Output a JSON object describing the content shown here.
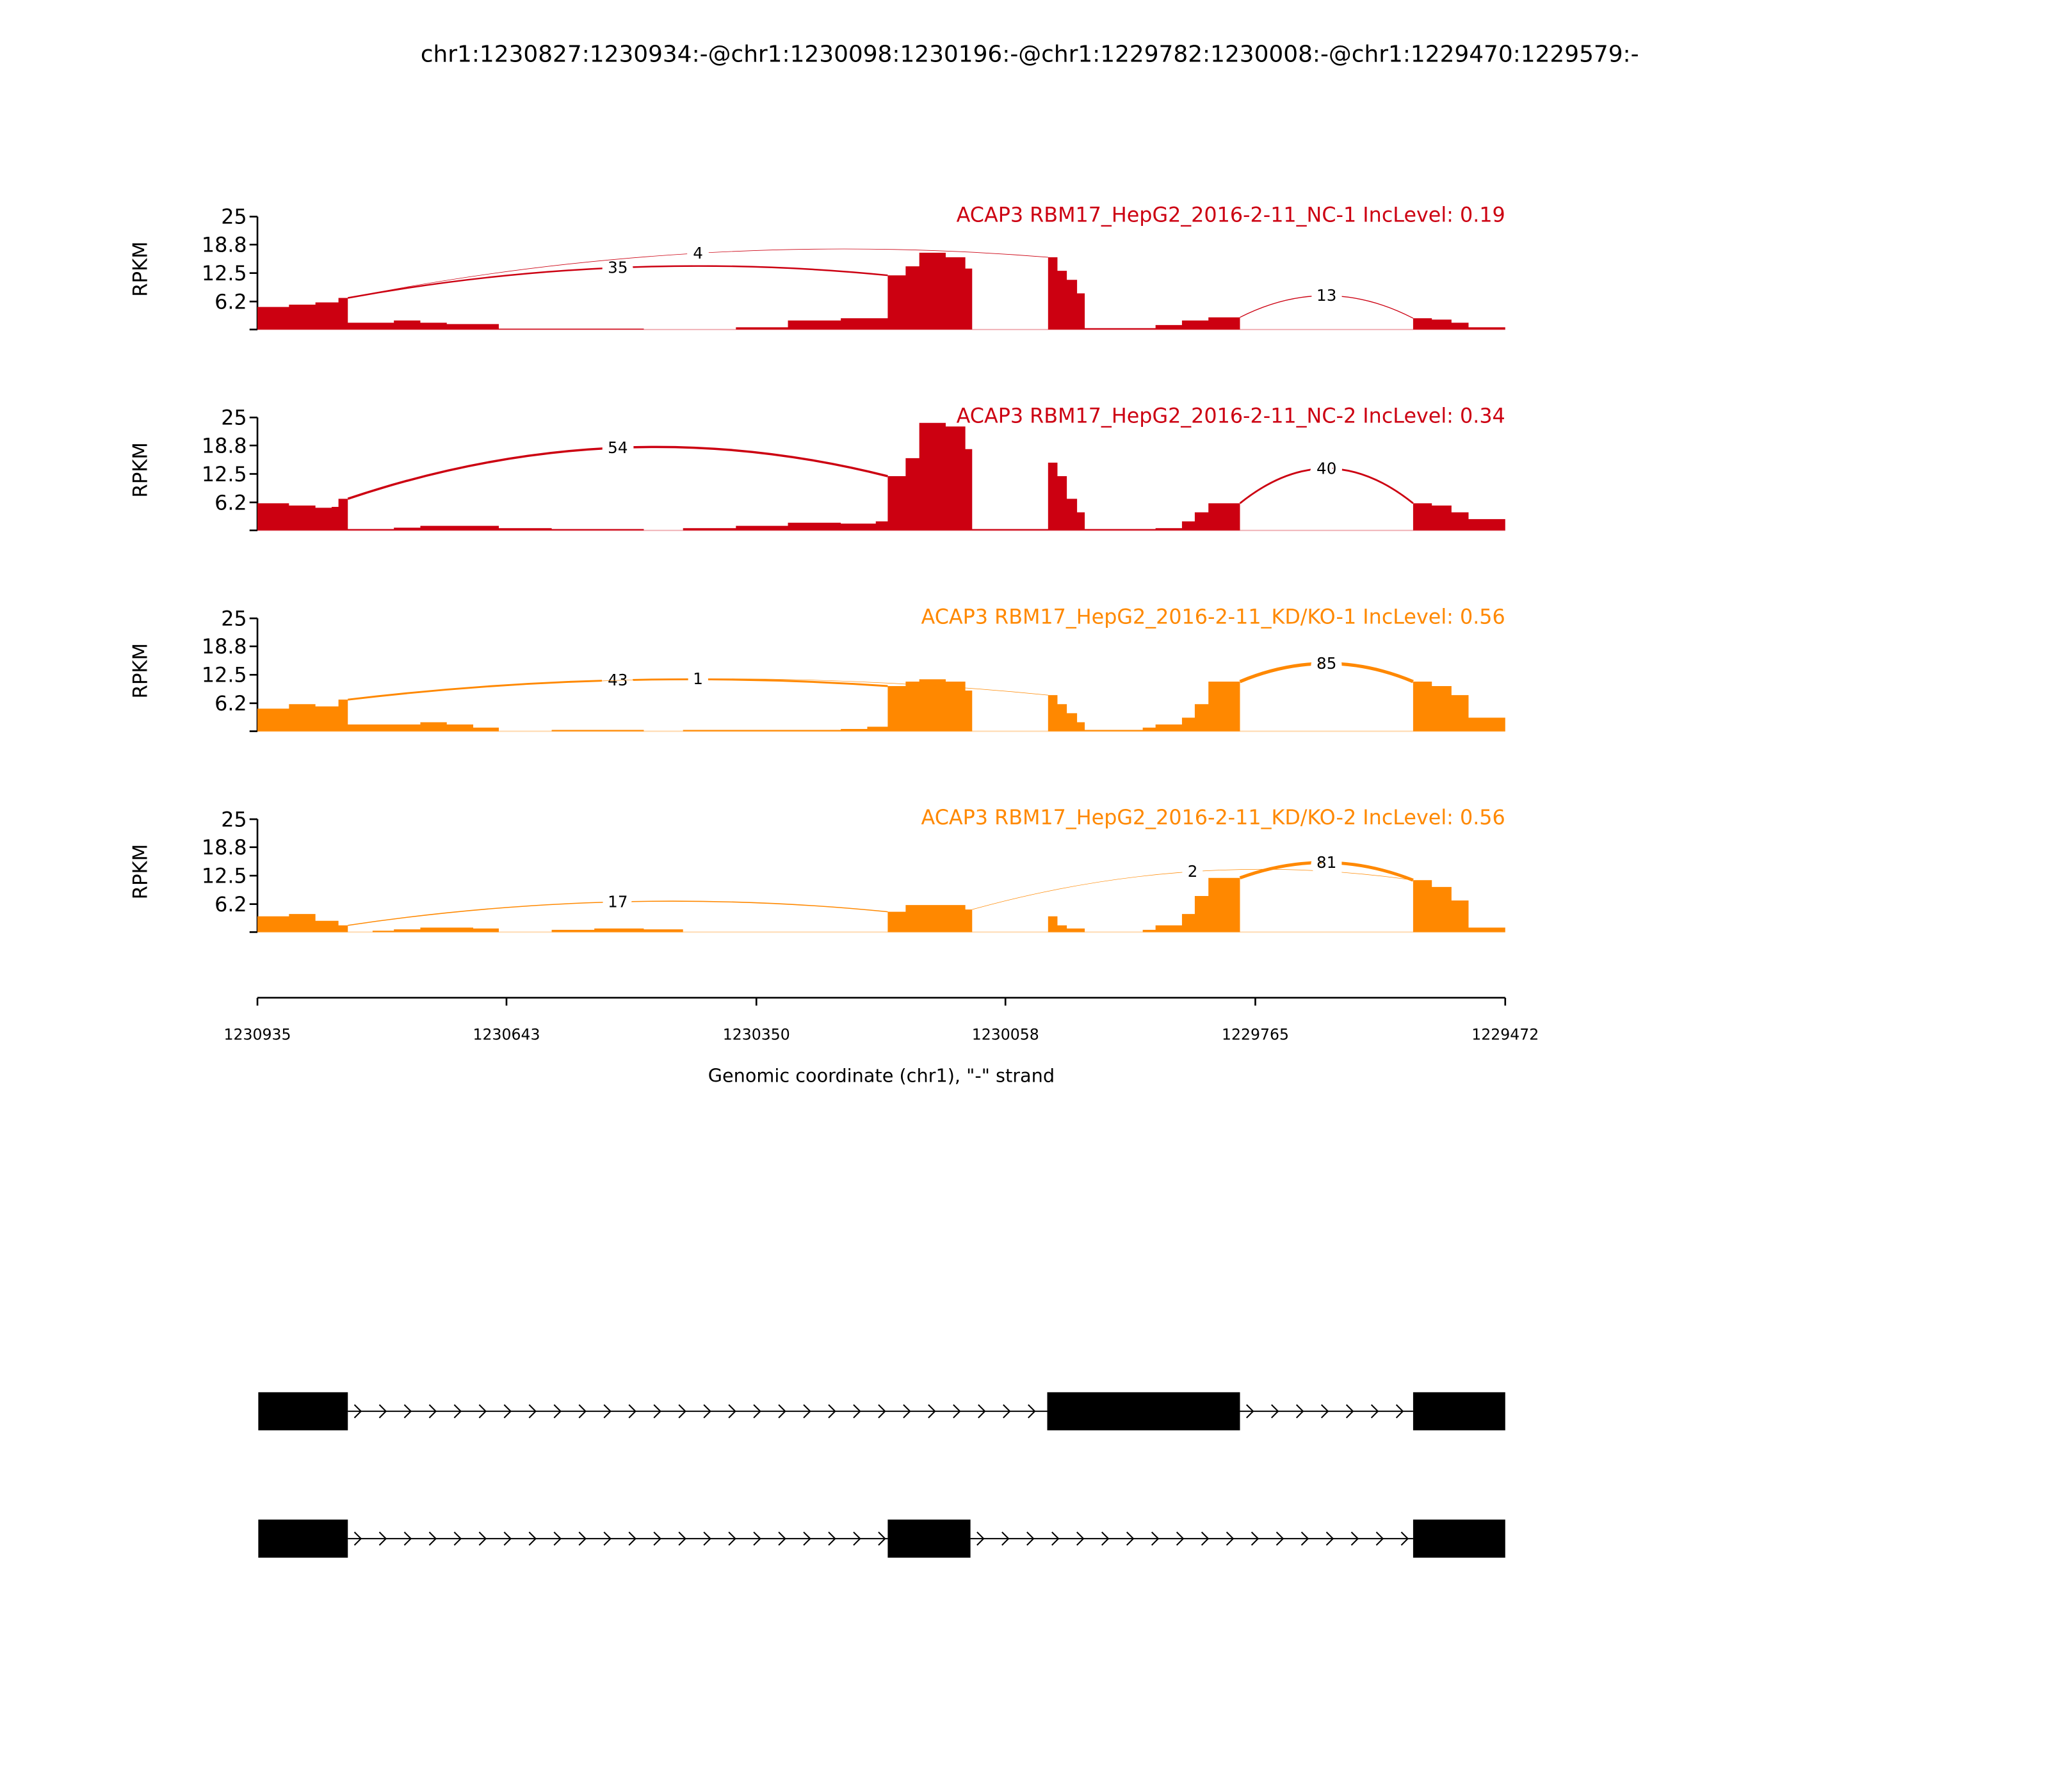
{
  "chart_data": {
    "type": "area",
    "title": "chr1:1230827:1230934:-@chr1:1230098:1230196:-@chr1:1229782:1230008:-@chr1:1229470:1229579:-",
    "xlabel": "Genomic coordinate (chr1), \"-\" strand",
    "ylabel": "RPKM",
    "xlim": [
      1230935,
      1229472
    ],
    "ylim": [
      0,
      25
    ],
    "yticks": [
      "25",
      "18.8",
      "12.5",
      "6.2"
    ],
    "ytick_values": [
      25,
      18.8,
      12.5,
      6.2,
      0
    ],
    "xticks": [
      "1230935",
      "1230643",
      "1230350",
      "1230058",
      "1229765",
      "1229472"
    ],
    "xtick_values": [
      1230935,
      1230643,
      1230350,
      1230058,
      1229765,
      1229472
    ],
    "colors": {
      "NC": "#CC0011",
      "KD": "#FF8800"
    },
    "samples": [
      {
        "title": "ACAP3 RBM17_HepG2_2016-2-11_NC-1 IncLevel: 0.19",
        "color": "#CC0011",
        "coverage": [
          [
            1230935,
            5
          ],
          [
            1230898,
            5.5
          ],
          [
            1230867,
            6
          ],
          [
            1230840,
            7
          ],
          [
            1230829,
            1.5
          ],
          [
            1230775,
            2
          ],
          [
            1230744,
            1.5
          ],
          [
            1230713,
            1.2
          ],
          [
            1230652,
            0.2
          ],
          [
            1230482,
            0
          ],
          [
            1230374,
            0.5
          ],
          [
            1230313,
            2
          ],
          [
            1230251,
            2.5
          ],
          [
            1230196,
            12
          ],
          [
            1230175,
            14
          ],
          [
            1230159,
            17
          ],
          [
            1230128,
            16
          ],
          [
            1230105,
            13.5
          ],
          [
            1230097,
            0
          ],
          [
            1230008,
            16
          ],
          [
            1229997,
            13
          ],
          [
            1229986,
            11
          ],
          [
            1229974,
            8
          ],
          [
            1229965,
            0.3
          ],
          [
            1229882,
            1
          ],
          [
            1229851,
            2
          ],
          [
            1229820,
            2.7
          ],
          [
            1229783,
            0
          ],
          [
            1229580,
            2.5
          ],
          [
            1229558,
            2.2
          ],
          [
            1229535,
            1.5
          ],
          [
            1229515,
            0.5
          ],
          [
            1229472,
            0.5
          ]
        ],
        "junctions": [
          {
            "from": 1230829,
            "to": 1230196,
            "count": "35",
            "apex": 13.7
          },
          {
            "from": 1230829,
            "to": 1230008,
            "count": "4",
            "apex": 16.9
          },
          {
            "from": 1229783,
            "to": 1229580,
            "count": "13",
            "apex": 7.5
          }
        ]
      },
      {
        "title": "ACAP3 RBM17_HepG2_2016-2-11_NC-2 IncLevel: 0.34",
        "color": "#CC0011",
        "coverage": [
          [
            1230935,
            6
          ],
          [
            1230898,
            5.5
          ],
          [
            1230867,
            5
          ],
          [
            1230848,
            5.2
          ],
          [
            1230840,
            7
          ],
          [
            1230829,
            0.3
          ],
          [
            1230775,
            0.6
          ],
          [
            1230744,
            1
          ],
          [
            1230652,
            0.5
          ],
          [
            1230590,
            0.3
          ],
          [
            1230482,
            0
          ],
          [
            1230436,
            0.5
          ],
          [
            1230374,
            1
          ],
          [
            1230313,
            1.7
          ],
          [
            1230251,
            1.5
          ],
          [
            1230210,
            2
          ],
          [
            1230196,
            12
          ],
          [
            1230175,
            16
          ],
          [
            1230159,
            23.8
          ],
          [
            1230128,
            23
          ],
          [
            1230105,
            18
          ],
          [
            1230097,
            0.3
          ],
          [
            1230008,
            15
          ],
          [
            1229997,
            12
          ],
          [
            1229986,
            7
          ],
          [
            1229974,
            4
          ],
          [
            1229965,
            0.3
          ],
          [
            1229882,
            0.5
          ],
          [
            1229851,
            2
          ],
          [
            1229836,
            4
          ],
          [
            1229820,
            6
          ],
          [
            1229783,
            0
          ],
          [
            1229580,
            6
          ],
          [
            1229558,
            5.5
          ],
          [
            1229535,
            4
          ],
          [
            1229515,
            2.5
          ],
          [
            1229472,
            2.5
          ]
        ],
        "junctions": [
          {
            "from": 1230829,
            "to": 1230196,
            "count": "54",
            "apex": 18.3
          },
          {
            "from": 1229783,
            "to": 1229580,
            "count": "40",
            "apex": 13.7
          }
        ]
      },
      {
        "title": "ACAP3 RBM17_HepG2_2016-2-11_KD/KO-1 IncLevel: 0.56",
        "color": "#FF8800",
        "coverage": [
          [
            1230935,
            5
          ],
          [
            1230898,
            6
          ],
          [
            1230867,
            5.5
          ],
          [
            1230840,
            7
          ],
          [
            1230829,
            1.5
          ],
          [
            1230744,
            2
          ],
          [
            1230713,
            1.5
          ],
          [
            1230682,
            0.8
          ],
          [
            1230652,
            0
          ],
          [
            1230590,
            0.3
          ],
          [
            1230482,
            0
          ],
          [
            1230436,
            0.3
          ],
          [
            1230251,
            0.5
          ],
          [
            1230220,
            1
          ],
          [
            1230196,
            10
          ],
          [
            1230175,
            11
          ],
          [
            1230159,
            11.5
          ],
          [
            1230128,
            11
          ],
          [
            1230105,
            9
          ],
          [
            1230097,
            0
          ],
          [
            1230008,
            8
          ],
          [
            1229997,
            6
          ],
          [
            1229986,
            4
          ],
          [
            1229974,
            2
          ],
          [
            1229965,
            0.3
          ],
          [
            1229897,
            0.8
          ],
          [
            1229882,
            1.5
          ],
          [
            1229851,
            3
          ],
          [
            1229836,
            6
          ],
          [
            1229820,
            11
          ],
          [
            1229783,
            0
          ],
          [
            1229580,
            11
          ],
          [
            1229558,
            10
          ],
          [
            1229535,
            8
          ],
          [
            1229515,
            3
          ],
          [
            1229472,
            3
          ]
        ],
        "junctions": [
          {
            "from": 1230829,
            "to": 1230196,
            "count": "43",
            "apex": 11.3
          },
          {
            "from": 1230829,
            "to": 1230008,
            "count": "1",
            "apex": 11.6
          },
          {
            "from": 1229783,
            "to": 1229580,
            "count": "85",
            "apex": 15.0
          }
        ]
      },
      {
        "title": "ACAP3 RBM17_HepG2_2016-2-11_KD/KO-2 IncLevel: 0.56",
        "color": "#FF8800",
        "coverage": [
          [
            1230935,
            3.5
          ],
          [
            1230898,
            4
          ],
          [
            1230867,
            2.5
          ],
          [
            1230840,
            1.5
          ],
          [
            1230829,
            0
          ],
          [
            1230800,
            0.3
          ],
          [
            1230775,
            0.6
          ],
          [
            1230744,
            1
          ],
          [
            1230682,
            0.8
          ],
          [
            1230652,
            0
          ],
          [
            1230590,
            0.5
          ],
          [
            1230540,
            0.8
          ],
          [
            1230482,
            0.6
          ],
          [
            1230436,
            0
          ],
          [
            1230196,
            4.5
          ],
          [
            1230175,
            6
          ],
          [
            1230128,
            6
          ],
          [
            1230105,
            5
          ],
          [
            1230097,
            0
          ],
          [
            1230008,
            3.5
          ],
          [
            1229997,
            1.5
          ],
          [
            1229986,
            0.8
          ],
          [
            1229965,
            0
          ],
          [
            1229897,
            0.5
          ],
          [
            1229882,
            1.5
          ],
          [
            1229851,
            4
          ],
          [
            1229836,
            8
          ],
          [
            1229820,
            12
          ],
          [
            1229783,
            0
          ],
          [
            1229580,
            11.5
          ],
          [
            1229558,
            10
          ],
          [
            1229535,
            7
          ],
          [
            1229515,
            1
          ],
          [
            1229472,
            1
          ]
        ],
        "junctions": [
          {
            "from": 1230829,
            "to": 1230196,
            "count": "17",
            "apex": 6.7
          },
          {
            "from": 1230097,
            "to": 1229580,
            "count": "2",
            "apex": 13.4
          },
          {
            "from": 1229783,
            "to": 1229580,
            "count": "81",
            "apex": 15.4
          }
        ]
      }
    ],
    "transcripts": [
      {
        "exons": [
          [
            1230934,
            1230829
          ],
          [
            1230009,
            1229783
          ],
          [
            1229580,
            1229472
          ]
        ]
      },
      {
        "exons": [
          [
            1230934,
            1230829
          ],
          [
            1230196,
            1230099
          ],
          [
            1229580,
            1229472
          ]
        ]
      }
    ]
  }
}
